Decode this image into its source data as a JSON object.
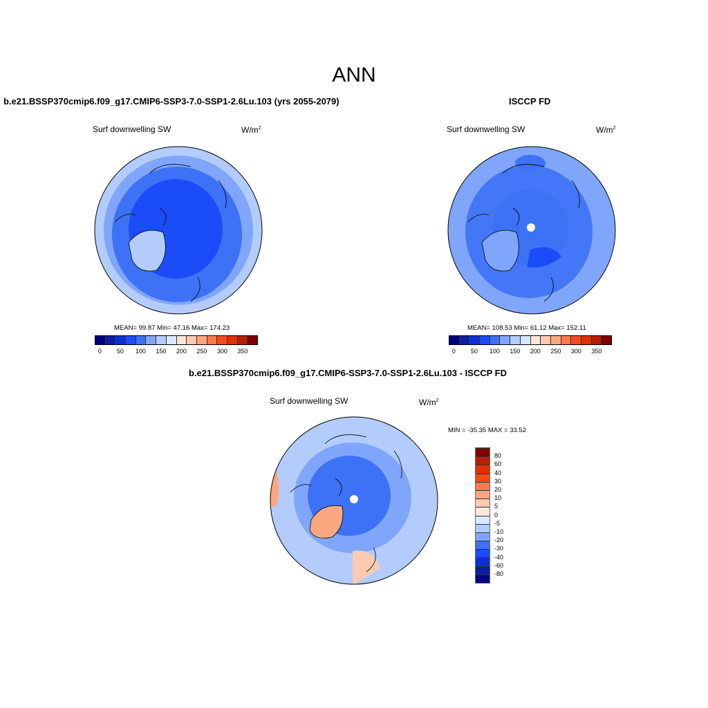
{
  "figure_title": "ANN",
  "colors": [
    "#000080",
    "#0a1fa0",
    "#0a30d8",
    "#1a4cf7",
    "#3d72f7",
    "#7fa6fa",
    "#b3ccfb",
    "#d8e8fd",
    "#fde8d8",
    "#fccab1",
    "#fca77f",
    "#fb7a4c",
    "#f84a1c",
    "#e03200",
    "#b81e00",
    "#800000"
  ],
  "panels": [
    {
      "title": "b.e21.BSSP370cmip6.f09_g17.CMIP6-SSP3-7.0-SSP1-2.6Lu.103 (yrs 2055-2079)",
      "variable": "Surf downwelling SW",
      "units": "W/m",
      "units_sup": "2",
      "stats": "MEAN=  99.87  Min=  47.16  Max= 174.23",
      "colorbar_ticks": [
        "0",
        "50",
        "100",
        "150",
        "200",
        "250",
        "300",
        "350"
      ]
    },
    {
      "title": "ISCCP FD",
      "variable": "Surf downwelling SW",
      "units": "W/m",
      "units_sup": "2",
      "stats": "MEAN= 108.53  Min=  61.12  Max= 152.11",
      "colorbar_ticks": [
        "0",
        "50",
        "100",
        "150",
        "200",
        "250",
        "300",
        "350"
      ]
    },
    {
      "title": "b.e21.BSSP370cmip6.f09_g17.CMIP6-SSP3-7.0-SSP1-2.6Lu.103 - ISCCP FD",
      "variable": "Surf downwelling SW",
      "units": "W/m",
      "units_sup": "2",
      "stats": "MIN = -35.35 MAX =  33.52",
      "colorbar_ticks": [
        "80",
        "60",
        "40",
        "30",
        "20",
        "10",
        "5",
        "0",
        "-5",
        "-10",
        "-20",
        "-30",
        "-40",
        "-60",
        "-80"
      ]
    }
  ]
}
